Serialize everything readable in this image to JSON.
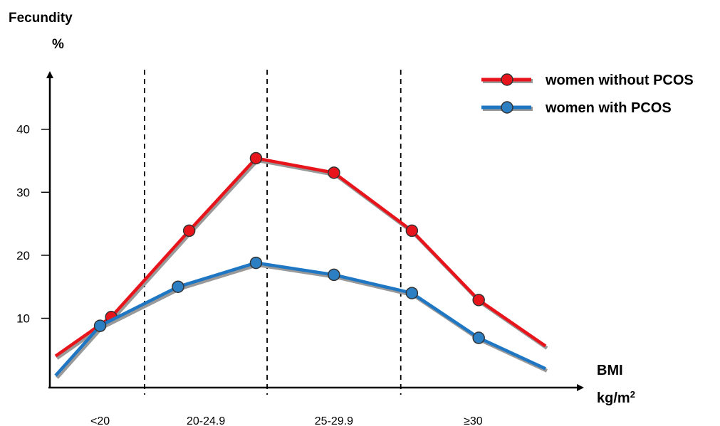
{
  "chart_data": {
    "type": "line",
    "y_title": "Fecundity",
    "y_unit": "%",
    "x_title": "BMI",
    "x_unit_base": "kg/m",
    "x_unit_sup": "2",
    "y_ticks": [
      10,
      20,
      30,
      40
    ],
    "ylim": [
      -1,
      49
    ],
    "categories": [
      "<20",
      "20-24.9",
      "25-29.9",
      "≥30"
    ],
    "legend_placement": "top-right",
    "series": [
      {
        "name": "women without PCOS",
        "color": "#e8141b",
        "marker_color": "#e8141b",
        "points": [
          {
            "x": 0.0,
            "y": 4.0,
            "marker": false
          },
          {
            "x": 0.5,
            "y": 10.2,
            "marker": true
          },
          {
            "x": 1.2,
            "y": 23.9,
            "marker": true
          },
          {
            "x": 1.8,
            "y": 35.4,
            "marker": true
          },
          {
            "x": 2.5,
            "y": 33.1,
            "marker": true
          },
          {
            "x": 3.2,
            "y": 23.9,
            "marker": true
          },
          {
            "x": 3.8,
            "y": 12.9,
            "marker": true
          },
          {
            "x": 4.4,
            "y": 5.6,
            "marker": false
          }
        ]
      },
      {
        "name": "women with PCOS",
        "color": "#1f77c4",
        "marker_color": "#2d7fc4",
        "points": [
          {
            "x": 0.0,
            "y": 0.9,
            "marker": false
          },
          {
            "x": 0.4,
            "y": 8.8,
            "marker": true
          },
          {
            "x": 1.1,
            "y": 15.0,
            "marker": true
          },
          {
            "x": 1.8,
            "y": 18.8,
            "marker": true
          },
          {
            "x": 2.5,
            "y": 16.9,
            "marker": true
          },
          {
            "x": 3.2,
            "y": 14.0,
            "marker": true
          },
          {
            "x": 3.8,
            "y": 6.9,
            "marker": true
          },
          {
            "x": 4.4,
            "y": 2.0,
            "marker": false
          }
        ]
      }
    ],
    "divider_positions": [
      0.8,
      1.9,
      3.1
    ]
  }
}
